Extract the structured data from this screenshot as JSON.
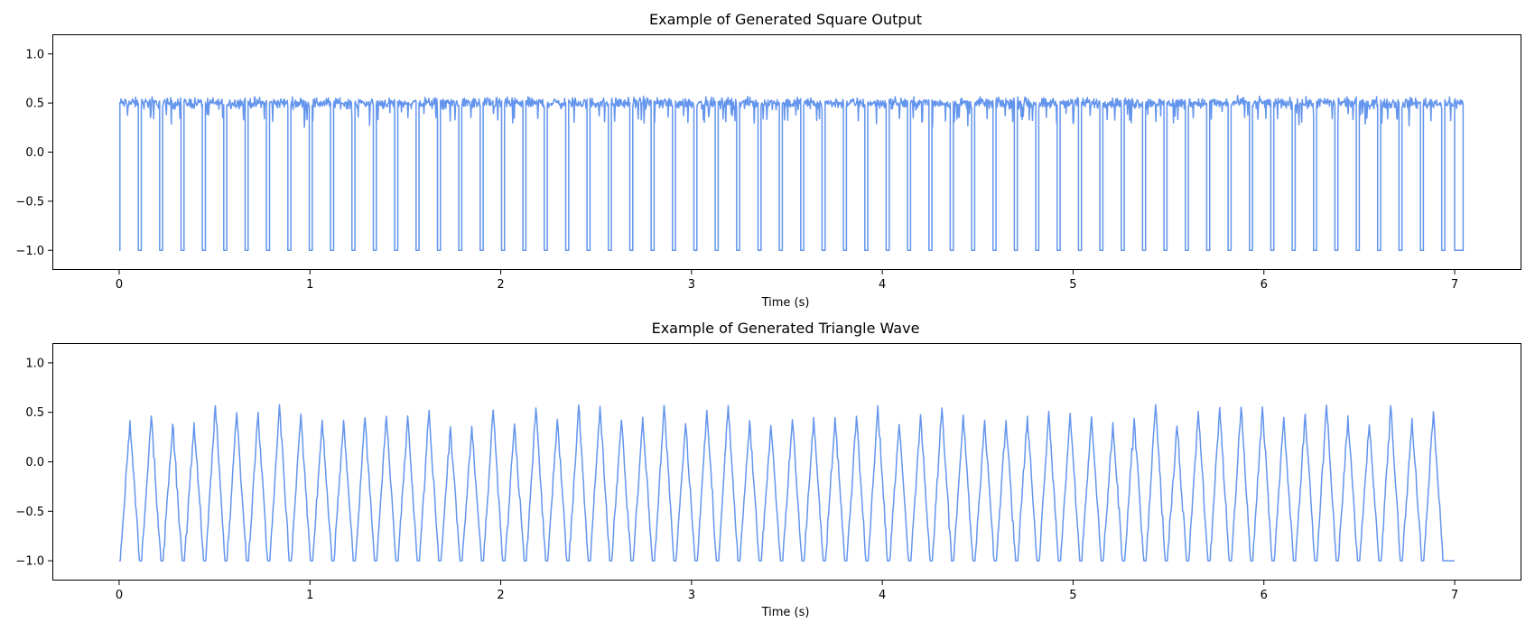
{
  "chart_data": [
    {
      "type": "line",
      "title": "Example of Generated Square Output",
      "xlabel": "Time (s)",
      "ylabel": "",
      "xlim": [
        -0.35,
        7.35
      ],
      "ylim": [
        -1.2,
        1.2
      ],
      "xticks": [
        0,
        1,
        2,
        3,
        4,
        5,
        6,
        7
      ],
      "yticks": [
        1.0,
        0.5,
        0.0,
        -0.5,
        -1.0
      ],
      "ytick_labels": [
        "1.0",
        "0.5",
        "0.0",
        "−0.5",
        "−1.0"
      ],
      "grid": false,
      "color": "#6495ed",
      "signal": {
        "kind": "square",
        "t_start": 0,
        "t_end": 7,
        "period": 0.112,
        "low": -1.0,
        "high": 0.5,
        "high_noise_range": [
          0.22,
          0.66
        ],
        "n_cycles": 63
      }
    },
    {
      "type": "line",
      "title": "Example of Generated Triangle Wave",
      "xlabel": "Time (s)",
      "ylabel": "",
      "xlim": [
        -0.35,
        7.35
      ],
      "ylim": [
        -1.2,
        1.2
      ],
      "xticks": [
        0,
        1,
        2,
        3,
        4,
        5,
        6,
        7
      ],
      "yticks": [
        1.0,
        0.5,
        0.0,
        -0.5,
        -1.0
      ],
      "ytick_labels": [
        "1.0",
        "0.5",
        "0.0",
        "−0.5",
        "−1.0"
      ],
      "grid": false,
      "color": "#6495ed",
      "signal": {
        "kind": "triangle",
        "t_start": 0,
        "t_end": 7,
        "period": 0.112,
        "low": -1.0,
        "peak_range": [
          0.35,
          0.58
        ],
        "n_cycles": 62
      }
    }
  ]
}
